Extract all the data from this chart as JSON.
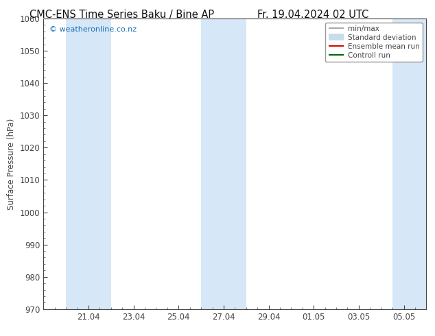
{
  "title_left": "CMC-ENS Time Series Baku / Bine AP",
  "title_right": "Fr. 19.04.2024 02 UTC",
  "ylabel": "Surface Pressure (hPa)",
  "ylim": [
    970,
    1060
  ],
  "yticks": [
    970,
    980,
    990,
    1000,
    1010,
    1020,
    1030,
    1040,
    1050,
    1060
  ],
  "x_labels": [
    "21.04",
    "23.04",
    "25.04",
    "27.04",
    "29.04",
    "01.05",
    "03.05",
    "05.05"
  ],
  "x_tick_values": [
    2,
    4,
    6,
    8,
    10,
    12,
    14,
    16
  ],
  "xlim": [
    0,
    17
  ],
  "watermark": "© weatheronline.co.nz",
  "watermark_color": "#1a6eb5",
  "bg_color": "#ffffff",
  "plot_bg_color": "#ffffff",
  "shaded_bands": [
    {
      "xmin": 1.0,
      "xmax": 3.0,
      "color": "#d6e8f7"
    },
    {
      "xmin": 7.0,
      "xmax": 9.0,
      "color": "#d6e8f7"
    },
    {
      "xmin": 15.5,
      "xmax": 17.0,
      "color": "#d6e8f7"
    }
  ],
  "legend_items": [
    {
      "label": "min/max",
      "color": "#aaaaaa",
      "lw": 1.5
    },
    {
      "label": "Standard deviation",
      "color": "#c8dcea",
      "lw": 7
    },
    {
      "label": "Ensemble mean run",
      "color": "#dd0000",
      "lw": 1.5
    },
    {
      "label": "Controll run",
      "color": "#006600",
      "lw": 1.5
    }
  ],
  "title_fontsize": 10.5,
  "tick_labelsize": 8.5,
  "axis_color": "#444444",
  "grid_color": "#cccccc"
}
